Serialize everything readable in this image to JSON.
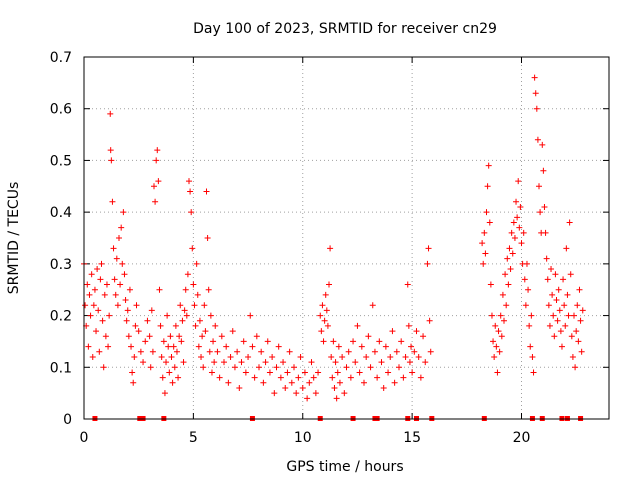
{
  "chart_data": {
    "type": "scatter",
    "title": "Day 100 of 2023, SRMTID for receiver cn29",
    "xlabel": "GPS time / hours",
    "ylabel": "SRMTID / TECUs",
    "xlim": [
      0,
      24
    ],
    "ylim": [
      0,
      0.7
    ],
    "x_ticks": [
      0,
      5,
      10,
      15,
      20
    ],
    "y_ticks": [
      0,
      0.1,
      0.2,
      0.3,
      0.4,
      0.5,
      0.6,
      0.7
    ],
    "marker": "plus",
    "color": "#ff0000",
    "grid": true,
    "series": [
      {
        "name": "SRMTID",
        "points": [
          [
            0.0,
            0.3
          ],
          [
            0.05,
            0.22
          ],
          [
            0.1,
            0.18
          ],
          [
            0.15,
            0.26
          ],
          [
            0.2,
            0.14
          ],
          [
            0.25,
            0.24
          ],
          [
            0.3,
            0.2
          ],
          [
            0.35,
            0.28
          ],
          [
            0.4,
            0.12
          ],
          [
            0.45,
            0.22
          ],
          [
            0.5,
            0.25
          ],
          [
            0.55,
            0.17
          ],
          [
            0.6,
            0.29
          ],
          [
            0.65,
            0.21
          ],
          [
            0.7,
            0.13
          ],
          [
            0.75,
            0.27
          ],
          [
            0.8,
            0.3
          ],
          [
            0.85,
            0.19
          ],
          [
            0.9,
            0.1
          ],
          [
            0.95,
            0.24
          ],
          [
            1.0,
            0.16
          ],
          [
            1.05,
            0.26
          ],
          [
            1.1,
            0.14
          ],
          [
            1.15,
            0.2
          ],
          [
            1.2,
            0.59
          ],
          [
            1.22,
            0.52
          ],
          [
            1.25,
            0.5
          ],
          [
            1.3,
            0.42
          ],
          [
            1.35,
            0.33
          ],
          [
            1.4,
            0.27
          ],
          [
            1.45,
            0.24
          ],
          [
            1.5,
            0.31
          ],
          [
            1.55,
            0.22
          ],
          [
            1.6,
            0.35
          ],
          [
            1.65,
            0.26
          ],
          [
            1.7,
            0.37
          ],
          [
            1.75,
            0.3
          ],
          [
            1.8,
            0.4
          ],
          [
            1.85,
            0.28
          ],
          [
            1.9,
            0.23
          ],
          [
            1.95,
            0.19
          ],
          [
            2.0,
            0.21
          ],
          [
            2.05,
            0.16
          ],
          [
            2.1,
            0.25
          ],
          [
            2.15,
            0.14
          ],
          [
            2.2,
            0.09
          ],
          [
            2.25,
            0.07
          ],
          [
            2.3,
            0.12
          ],
          [
            2.35,
            0.18
          ],
          [
            2.4,
            0.22
          ],
          [
            2.5,
            0.17
          ],
          [
            2.6,
            0.13
          ],
          [
            2.7,
            0.11
          ],
          [
            2.8,
            0.15
          ],
          [
            2.9,
            0.19
          ],
          [
            3.0,
            0.16
          ],
          [
            3.05,
            0.1
          ],
          [
            3.1,
            0.21
          ],
          [
            3.15,
            0.13
          ],
          [
            3.2,
            0.45
          ],
          [
            3.25,
            0.42
          ],
          [
            3.3,
            0.5
          ],
          [
            3.35,
            0.52
          ],
          [
            3.4,
            0.46
          ],
          [
            3.45,
            0.25
          ],
          [
            3.5,
            0.18
          ],
          [
            3.55,
            0.12
          ],
          [
            3.6,
            0.08
          ],
          [
            3.65,
            0.15
          ],
          [
            3.7,
            0.05
          ],
          [
            3.75,
            0.11
          ],
          [
            3.8,
            0.2
          ],
          [
            3.85,
            0.14
          ],
          [
            3.9,
            0.09
          ],
          [
            3.95,
            0.16
          ],
          [
            4.0,
            0.12
          ],
          [
            4.05,
            0.07
          ],
          [
            4.1,
            0.14
          ],
          [
            4.15,
            0.1
          ],
          [
            4.2,
            0.18
          ],
          [
            4.25,
            0.13
          ],
          [
            4.3,
            0.08
          ],
          [
            4.35,
            0.16
          ],
          [
            4.4,
            0.22
          ],
          [
            4.45,
            0.15
          ],
          [
            4.5,
            0.19
          ],
          [
            4.55,
            0.11
          ],
          [
            4.6,
            0.21
          ],
          [
            4.65,
            0.25
          ],
          [
            4.7,
            0.2
          ],
          [
            4.75,
            0.28
          ],
          [
            4.8,
            0.46
          ],
          [
            4.85,
            0.44
          ],
          [
            4.9,
            0.4
          ],
          [
            4.95,
            0.33
          ],
          [
            5.0,
            0.26
          ],
          [
            5.05,
            0.22
          ],
          [
            5.1,
            0.18
          ],
          [
            5.15,
            0.3
          ],
          [
            5.2,
            0.24
          ],
          [
            5.25,
            0.14
          ],
          [
            5.3,
            0.19
          ],
          [
            5.35,
            0.12
          ],
          [
            5.4,
            0.16
          ],
          [
            5.45,
            0.1
          ],
          [
            5.5,
            0.22
          ],
          [
            5.55,
            0.17
          ],
          [
            5.6,
            0.44
          ],
          [
            5.65,
            0.35
          ],
          [
            5.7,
            0.25
          ],
          [
            5.75,
            0.13
          ],
          [
            5.8,
            0.2
          ],
          [
            5.85,
            0.09
          ],
          [
            5.9,
            0.15
          ],
          [
            5.95,
            0.11
          ],
          [
            6.0,
            0.18
          ],
          [
            6.1,
            0.13
          ],
          [
            6.2,
            0.08
          ],
          [
            6.3,
            0.16
          ],
          [
            6.4,
            0.11
          ],
          [
            6.5,
            0.14
          ],
          [
            6.6,
            0.07
          ],
          [
            6.7,
            0.12
          ],
          [
            6.8,
            0.17
          ],
          [
            6.9,
            0.1
          ],
          [
            7.0,
            0.13
          ],
          [
            7.1,
            0.06
          ],
          [
            7.2,
            0.11
          ],
          [
            7.3,
            0.15
          ],
          [
            7.4,
            0.09
          ],
          [
            7.5,
            0.12
          ],
          [
            7.6,
            0.2
          ],
          [
            7.7,
            0.14
          ],
          [
            7.8,
            0.08
          ],
          [
            7.9,
            0.16
          ],
          [
            8.0,
            0.1
          ],
          [
            8.1,
            0.13
          ],
          [
            8.2,
            0.07
          ],
          [
            8.3,
            0.11
          ],
          [
            8.4,
            0.15
          ],
          [
            8.5,
            0.09
          ],
          [
            8.6,
            0.12
          ],
          [
            8.7,
            0.05
          ],
          [
            8.8,
            0.1
          ],
          [
            8.9,
            0.14
          ],
          [
            9.0,
            0.08
          ],
          [
            9.1,
            0.11
          ],
          [
            9.2,
            0.06
          ],
          [
            9.3,
            0.09
          ],
          [
            9.4,
            0.13
          ],
          [
            9.5,
            0.07
          ],
          [
            9.6,
            0.1
          ],
          [
            9.7,
            0.05
          ],
          [
            9.8,
            0.08
          ],
          [
            9.9,
            0.12
          ],
          [
            10.0,
            0.06
          ],
          [
            10.1,
            0.09
          ],
          [
            10.2,
            0.04
          ],
          [
            10.3,
            0.07
          ],
          [
            10.4,
            0.11
          ],
          [
            10.5,
            0.08
          ],
          [
            10.6,
            0.05
          ],
          [
            10.7,
            0.09
          ],
          [
            10.8,
            0.2
          ],
          [
            10.85,
            0.17
          ],
          [
            10.9,
            0.22
          ],
          [
            10.95,
            0.15
          ],
          [
            11.0,
            0.19
          ],
          [
            11.05,
            0.24
          ],
          [
            11.1,
            0.21
          ],
          [
            11.15,
            0.18
          ],
          [
            11.2,
            0.26
          ],
          [
            11.25,
            0.33
          ],
          [
            11.3,
            0.12
          ],
          [
            11.35,
            0.08
          ],
          [
            11.4,
            0.15
          ],
          [
            11.45,
            0.06
          ],
          [
            11.5,
            0.11
          ],
          [
            11.55,
            0.04
          ],
          [
            11.6,
            0.09
          ],
          [
            11.65,
            0.14
          ],
          [
            11.7,
            0.07
          ],
          [
            11.8,
            0.12
          ],
          [
            11.9,
            0.05
          ],
          [
            12.0,
            0.1
          ],
          [
            12.1,
            0.13
          ],
          [
            12.2,
            0.08
          ],
          [
            12.3,
            0.15
          ],
          [
            12.4,
            0.11
          ],
          [
            12.5,
            0.18
          ],
          [
            12.6,
            0.09
          ],
          [
            12.7,
            0.14
          ],
          [
            12.8,
            0.07
          ],
          [
            12.9,
            0.12
          ],
          [
            13.0,
            0.16
          ],
          [
            13.1,
            0.1
          ],
          [
            13.2,
            0.22
          ],
          [
            13.3,
            0.13
          ],
          [
            13.4,
            0.08
          ],
          [
            13.5,
            0.15
          ],
          [
            13.6,
            0.11
          ],
          [
            13.7,
            0.06
          ],
          [
            13.8,
            0.14
          ],
          [
            13.9,
            0.09
          ],
          [
            14.0,
            0.12
          ],
          [
            14.1,
            0.17
          ],
          [
            14.2,
            0.07
          ],
          [
            14.3,
            0.13
          ],
          [
            14.4,
            0.1
          ],
          [
            14.5,
            0.15
          ],
          [
            14.6,
            0.08
          ],
          [
            14.7,
            0.12
          ],
          [
            14.8,
            0.26
          ],
          [
            14.85,
            0.18
          ],
          [
            14.9,
            0.11
          ],
          [
            14.95,
            0.14
          ],
          [
            15.0,
            0.09
          ],
          [
            15.1,
            0.13
          ],
          [
            15.2,
            0.17
          ],
          [
            15.3,
            0.12
          ],
          [
            15.4,
            0.08
          ],
          [
            15.5,
            0.16
          ],
          [
            15.6,
            0.11
          ],
          [
            15.7,
            0.3
          ],
          [
            15.75,
            0.33
          ],
          [
            15.8,
            0.19
          ],
          [
            15.85,
            0.13
          ],
          [
            18.2,
            0.34
          ],
          [
            18.25,
            0.3
          ],
          [
            18.3,
            0.36
          ],
          [
            18.35,
            0.32
          ],
          [
            18.4,
            0.4
          ],
          [
            18.45,
            0.45
          ],
          [
            18.5,
            0.49
          ],
          [
            18.55,
            0.38
          ],
          [
            18.6,
            0.26
          ],
          [
            18.65,
            0.2
          ],
          [
            18.7,
            0.15
          ],
          [
            18.75,
            0.12
          ],
          [
            18.8,
            0.18
          ],
          [
            18.85,
            0.14
          ],
          [
            18.9,
            0.09
          ],
          [
            18.95,
            0.17
          ],
          [
            19.0,
            0.13
          ],
          [
            19.05,
            0.2
          ],
          [
            19.1,
            0.16
          ],
          [
            19.15,
            0.24
          ],
          [
            19.2,
            0.19
          ],
          [
            19.25,
            0.28
          ],
          [
            19.3,
            0.22
          ],
          [
            19.35,
            0.31
          ],
          [
            19.4,
            0.26
          ],
          [
            19.45,
            0.33
          ],
          [
            19.5,
            0.29
          ],
          [
            19.55,
            0.36
          ],
          [
            19.6,
            0.32
          ],
          [
            19.65,
            0.38
          ],
          [
            19.7,
            0.35
          ],
          [
            19.75,
            0.42
          ],
          [
            19.8,
            0.39
          ],
          [
            19.85,
            0.46
          ],
          [
            19.9,
            0.37
          ],
          [
            19.95,
            0.41
          ],
          [
            20.0,
            0.34
          ],
          [
            20.05,
            0.3
          ],
          [
            20.1,
            0.36
          ],
          [
            20.15,
            0.27
          ],
          [
            20.2,
            0.22
          ],
          [
            20.25,
            0.3
          ],
          [
            20.3,
            0.25
          ],
          [
            20.35,
            0.18
          ],
          [
            20.4,
            0.14
          ],
          [
            20.45,
            0.2
          ],
          [
            20.5,
            0.12
          ],
          [
            20.55,
            0.09
          ],
          [
            20.6,
            0.66
          ],
          [
            20.65,
            0.63
          ],
          [
            20.7,
            0.6
          ],
          [
            20.75,
            0.54
          ],
          [
            20.8,
            0.45
          ],
          [
            20.85,
            0.4
          ],
          [
            20.9,
            0.36
          ],
          [
            20.95,
            0.53
          ],
          [
            21.0,
            0.48
          ],
          [
            21.05,
            0.41
          ],
          [
            21.1,
            0.36
          ],
          [
            21.15,
            0.31
          ],
          [
            21.2,
            0.27
          ],
          [
            21.25,
            0.22
          ],
          [
            21.3,
            0.18
          ],
          [
            21.35,
            0.29
          ],
          [
            21.4,
            0.24
          ],
          [
            21.45,
            0.2
          ],
          [
            21.5,
            0.16
          ],
          [
            21.55,
            0.28
          ],
          [
            21.6,
            0.23
          ],
          [
            21.65,
            0.19
          ],
          [
            21.7,
            0.25
          ],
          [
            21.75,
            0.21
          ],
          [
            21.8,
            0.17
          ],
          [
            21.85,
            0.14
          ],
          [
            21.9,
            0.27
          ],
          [
            21.95,
            0.22
          ],
          [
            22.0,
            0.18
          ],
          [
            22.05,
            0.33
          ],
          [
            22.1,
            0.24
          ],
          [
            22.15,
            0.2
          ],
          [
            22.2,
            0.38
          ],
          [
            22.25,
            0.28
          ],
          [
            22.3,
            0.16
          ],
          [
            22.35,
            0.12
          ],
          [
            22.4,
            0.2
          ],
          [
            22.45,
            0.1
          ],
          [
            22.5,
            0.17
          ],
          [
            22.55,
            0.22
          ],
          [
            22.6,
            0.15
          ],
          [
            22.65,
            0.25
          ],
          [
            22.7,
            0.19
          ],
          [
            22.75,
            0.13
          ],
          [
            22.8,
            0.21
          ]
        ]
      }
    ],
    "zero_markers": [
      0.5,
      2.55,
      2.7,
      3.65,
      7.7,
      10.8,
      12.3,
      13.3,
      13.4,
      14.8,
      15.2,
      15.9,
      18.3,
      20.5,
      20.95,
      21.85,
      22.1,
      22.7
    ]
  }
}
